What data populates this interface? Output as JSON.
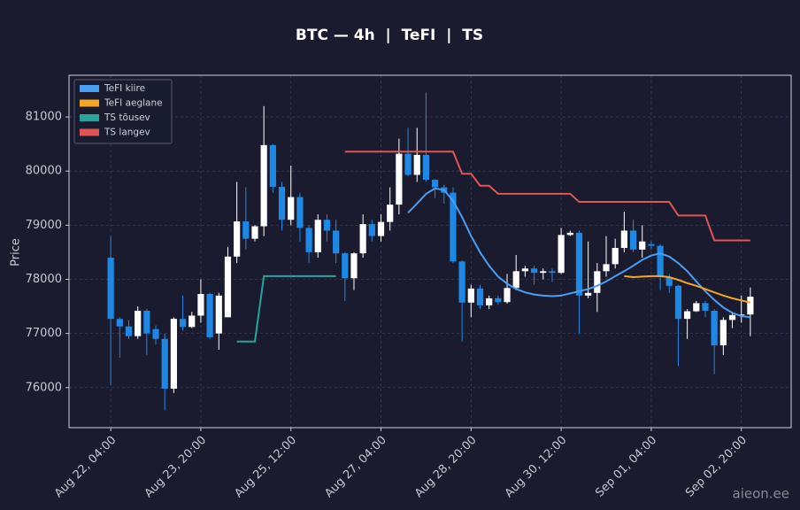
{
  "chart_data": {
    "type": "candlestick",
    "title": "BTC — 4h  |  TeFI  |  TS",
    "ylabel": "Price",
    "watermark": "aieon.ee",
    "x": [
      "Aug 22, 04:00",
      "Aug 22, 08:00",
      "Aug 22, 12:00",
      "Aug 22, 16:00",
      "Aug 22, 20:00",
      "Aug 23, 00:00",
      "Aug 23, 04:00",
      "Aug 23, 08:00",
      "Aug 23, 12:00",
      "Aug 23, 16:00",
      "Aug 23, 20:00",
      "Aug 24, 00:00",
      "Aug 24, 04:00",
      "Aug 24, 08:00",
      "Aug 24, 12:00",
      "Aug 24, 16:00",
      "Aug 24, 20:00",
      "Aug 25, 00:00",
      "Aug 25, 04:00",
      "Aug 25, 08:00",
      "Aug 25, 12:00",
      "Aug 25, 16:00",
      "Aug 25, 20:00",
      "Aug 26, 00:00",
      "Aug 26, 04:00",
      "Aug 26, 08:00",
      "Aug 26, 12:00",
      "Aug 26, 16:00",
      "Aug 26, 20:00",
      "Aug 27, 00:00",
      "Aug 27, 04:00",
      "Aug 27, 08:00",
      "Aug 27, 12:00",
      "Aug 27, 16:00",
      "Aug 27, 20:00",
      "Aug 28, 00:00",
      "Aug 28, 04:00",
      "Aug 28, 08:00",
      "Aug 28, 12:00",
      "Aug 28, 16:00",
      "Aug 28, 20:00",
      "Aug 29, 00:00",
      "Aug 29, 04:00",
      "Aug 29, 08:00",
      "Aug 29, 12:00",
      "Aug 29, 16:00",
      "Aug 29, 20:00",
      "Aug 30, 00:00",
      "Aug 30, 04:00",
      "Aug 30, 08:00",
      "Aug 30, 12:00",
      "Aug 30, 16:00",
      "Aug 30, 20:00",
      "Aug 31, 00:00",
      "Aug 31, 04:00",
      "Aug 31, 08:00",
      "Aug 31, 12:00",
      "Aug 31, 16:00",
      "Aug 31, 20:00",
      "Sep 01, 00:00",
      "Sep 01, 04:00",
      "Sep 01, 08:00",
      "Sep 01, 12:00",
      "Sep 01, 16:00",
      "Sep 01, 20:00",
      "Sep 02, 00:00",
      "Sep 02, 04:00",
      "Sep 02, 08:00",
      "Sep 02, 12:00",
      "Sep 02, 16:00",
      "Sep 02, 20:00",
      "Sep 03, 00:00"
    ],
    "open": [
      78400,
      77270,
      77130,
      76950,
      77420,
      77080,
      76900,
      75980,
      77270,
      77120,
      77330,
      77730,
      77000,
      77300,
      78420,
      79070,
      78750,
      78980,
      80480,
      79710,
      79100,
      79520,
      78950,
      78500,
      79100,
      78900,
      78480,
      78020,
      78480,
      79020,
      78800,
      79060,
      79380,
      80320,
      79930,
      80300,
      79840,
      79700,
      79600,
      78330,
      77570,
      77830,
      77520,
      77650,
      77580,
      77840,
      78150,
      78200,
      78120,
      78150,
      78120,
      78820,
      78860,
      77700,
      77750,
      78150,
      78280,
      78580,
      78900,
      78550,
      78650,
      78620,
      78040,
      77880,
      77270,
      77410,
      77560,
      77420,
      76780,
      77250,
      77340,
      77350
    ],
    "high": [
      78800,
      77300,
      77250,
      77500,
      77450,
      77150,
      77000,
      77300,
      77700,
      77400,
      78000,
      77750,
      77750,
      78600,
      79800,
      79700,
      79000,
      81200,
      80500,
      79800,
      80100,
      79600,
      79000,
      79200,
      79200,
      79100,
      78500,
      78500,
      79200,
      79100,
      79200,
      79700,
      80600,
      80800,
      80800,
      81450,
      79850,
      79750,
      79700,
      78350,
      77900,
      77900,
      77700,
      77700,
      78100,
      78450,
      78250,
      78250,
      78200,
      78200,
      78950,
      78900,
      78900,
      78700,
      78300,
      78800,
      78750,
      79250,
      79100,
      79000,
      78700,
      78650,
      78100,
      77900,
      77450,
      77600,
      77600,
      77450,
      77300,
      77400,
      77700,
      77850
    ],
    "low": [
      76050,
      76550,
      76900,
      76900,
      76600,
      76800,
      75580,
      75900,
      77050,
      77100,
      77200,
      76900,
      76700,
      77300,
      78300,
      78550,
      78700,
      78800,
      79600,
      78900,
      79000,
      78700,
      78300,
      78400,
      78700,
      78300,
      77600,
      77800,
      78400,
      78700,
      78700,
      78900,
      79200,
      79900,
      79800,
      79800,
      79500,
      79400,
      78300,
      76850,
      77300,
      77450,
      77450,
      77530,
      77550,
      77800,
      78050,
      77900,
      78000,
      77950,
      78100,
      78800,
      77000,
      77650,
      77400,
      78050,
      78200,
      78500,
      78500,
      78400,
      78550,
      77800,
      77750,
      76400,
      76900,
      77400,
      77300,
      76250,
      76600,
      77100,
      77200,
      76950
    ],
    "close": [
      77270,
      77130,
      76950,
      77420,
      77000,
      76900,
      75980,
      77270,
      77120,
      77330,
      77730,
      76930,
      77700,
      78420,
      79070,
      78750,
      78980,
      80480,
      79710,
      79100,
      79520,
      78950,
      78500,
      79100,
      78900,
      78480,
      78020,
      78480,
      79020,
      78800,
      79060,
      79380,
      80320,
      79930,
      80300,
      79840,
      79700,
      79600,
      78330,
      77570,
      77830,
      77520,
      77650,
      77580,
      77840,
      78150,
      78200,
      78120,
      78150,
      78120,
      78820,
      78860,
      77700,
      77750,
      78150,
      78280,
      78580,
      78900,
      78550,
      78700,
      78620,
      78040,
      77880,
      77270,
      77410,
      77560,
      77420,
      76780,
      77250,
      77340,
      77350,
      77680
    ],
    "up_color": "#ffffff",
    "down_color": "#1e88e5",
    "series": [
      {
        "name": "TeFI kiire",
        "color": "#4a9ff5",
        "values": [
          null,
          null,
          null,
          null,
          null,
          null,
          null,
          null,
          null,
          null,
          null,
          null,
          null,
          null,
          null,
          null,
          null,
          null,
          null,
          null,
          null,
          null,
          null,
          null,
          null,
          null,
          null,
          null,
          null,
          null,
          null,
          null,
          null,
          79230,
          79400,
          79580,
          79680,
          79650,
          79450,
          79150,
          78800,
          78500,
          78250,
          78050,
          77920,
          77820,
          77760,
          77720,
          77700,
          77690,
          77700,
          77740,
          77780,
          77820,
          77880,
          77960,
          78060,
          78150,
          78250,
          78360,
          78440,
          78480,
          78420,
          78300,
          78150,
          77960,
          77780,
          77620,
          77480,
          77380,
          77320,
          77300
        ]
      },
      {
        "name": "TeFI aeglane",
        "color": "#f5a623",
        "values": [
          null,
          null,
          null,
          null,
          null,
          null,
          null,
          null,
          null,
          null,
          null,
          null,
          null,
          null,
          null,
          null,
          null,
          null,
          null,
          null,
          null,
          null,
          null,
          null,
          null,
          null,
          null,
          null,
          null,
          null,
          null,
          null,
          null,
          null,
          null,
          null,
          null,
          null,
          null,
          null,
          null,
          null,
          null,
          null,
          null,
          null,
          null,
          null,
          null,
          null,
          null,
          null,
          null,
          null,
          null,
          null,
          null,
          78060,
          78040,
          78050,
          78060,
          78060,
          78040,
          77990,
          77930,
          77880,
          77820,
          77760,
          77700,
          77650,
          77610,
          77570
        ]
      },
      {
        "name": "TS tõusev",
        "color": "#26a69a",
        "values": [
          null,
          null,
          null,
          null,
          null,
          null,
          null,
          null,
          null,
          null,
          null,
          null,
          null,
          null,
          76850,
          76850,
          76850,
          78060,
          78060,
          78060,
          78060,
          78060,
          78060,
          78060,
          78060,
          78060,
          null,
          null,
          null,
          null,
          null,
          null,
          null,
          null,
          null,
          null,
          null,
          null,
          null,
          null,
          null,
          null,
          null,
          null,
          null,
          null,
          null,
          null,
          null,
          null,
          null,
          null,
          null,
          null,
          null,
          null,
          null,
          null,
          null,
          null,
          null,
          null,
          null,
          null,
          null,
          null,
          null,
          null,
          null,
          null,
          null,
          null
        ]
      },
      {
        "name": "TS langev",
        "color": "#e05555",
        "values": [
          null,
          null,
          null,
          null,
          null,
          null,
          null,
          null,
          null,
          null,
          null,
          null,
          null,
          null,
          null,
          null,
          null,
          null,
          null,
          null,
          null,
          null,
          null,
          null,
          null,
          null,
          80360,
          80360,
          80360,
          80360,
          80360,
          80360,
          80360,
          80360,
          80360,
          80360,
          80360,
          80360,
          80360,
          79950,
          79950,
          79730,
          79730,
          79580,
          79580,
          79580,
          79580,
          79580,
          79580,
          79580,
          79580,
          79580,
          79430,
          79430,
          79430,
          79430,
          79430,
          79430,
          79430,
          79430,
          79430,
          79430,
          79430,
          79180,
          79180,
          79180,
          79180,
          78720,
          78720,
          78720,
          78720,
          78720
        ]
      }
    ],
    "ylim": [
      75260,
      81770
    ],
    "yticks": [
      76000,
      77000,
      78000,
      79000,
      80000,
      81000
    ],
    "grid": true,
    "legend": "upper left"
  }
}
